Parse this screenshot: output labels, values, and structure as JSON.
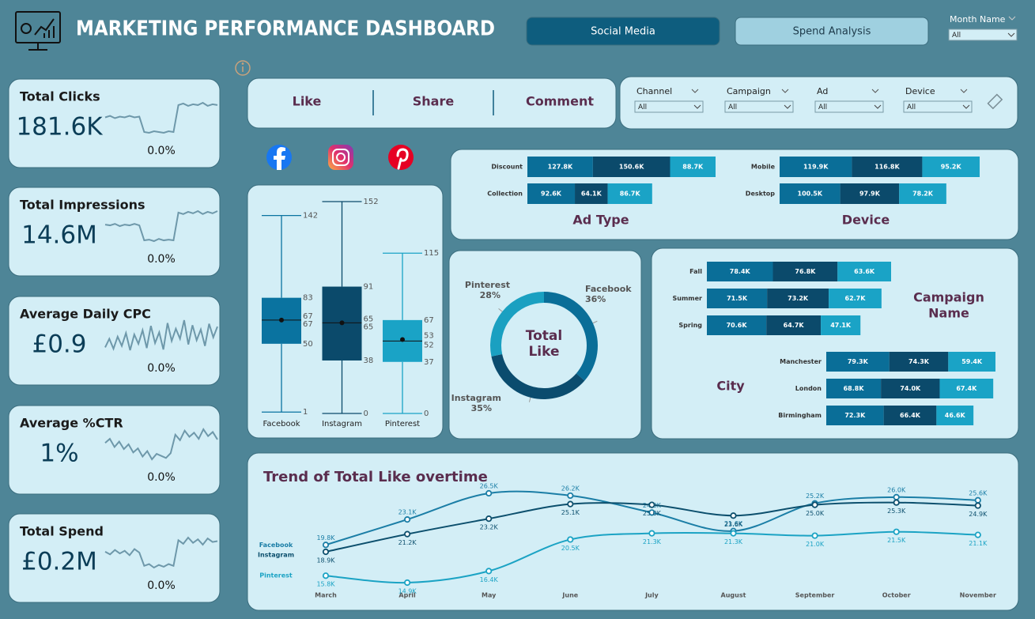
{
  "header": {
    "title": "MARKETING PERFORMANCE DASHBOARD",
    "buttons": [
      "Social Media",
      "Spend Analysis"
    ],
    "month_filter": {
      "label": "Month Name",
      "value": "All"
    }
  },
  "kpis": [
    {
      "label": "Total Clicks",
      "value": "181.6K",
      "change": "0.0%",
      "trend": [
        6.0,
        6.2,
        5.9,
        6.1,
        6.0,
        6.2,
        6.0,
        6.1,
        4.1,
        4.0,
        4.2,
        4.1,
        4.0,
        4.2,
        4.1,
        7.6,
        7.8,
        7.5,
        7.7,
        7.6,
        7.9,
        7.5,
        7.7,
        7.6
      ]
    },
    {
      "label": "Total Impressions",
      "value": "14.6M",
      "change": "0.0%",
      "trend": [
        6.1,
        6.0,
        6.2,
        5.9,
        6.1,
        6.0,
        6.2,
        6.0,
        4.0,
        4.1,
        3.9,
        4.2,
        4.0,
        4.1,
        4.0,
        7.7,
        7.5,
        7.8,
        7.6,
        7.9,
        7.5,
        7.8,
        7.6,
        7.9
      ]
    },
    {
      "label": "Average Daily CPC",
      "value": "£0.9",
      "change": "0.0%",
      "trend": [
        5.0,
        6.2,
        4.8,
        6.5,
        5.2,
        7.0,
        4.6,
        6.8,
        5.5,
        7.4,
        4.9,
        8.0,
        5.6,
        7.1,
        4.7,
        8.4,
        5.9,
        7.6,
        6.2,
        8.8,
        5.4,
        8.1,
        6.0,
        7.5,
        5.2,
        8.3,
        6.4,
        7.9
      ]
    },
    {
      "label": "Average %CTR",
      "value": "1%",
      "change": "0.0%",
      "trend": [
        6.0,
        6.6,
        5.4,
        6.2,
        5.1,
        5.8,
        4.6,
        5.2,
        4.0,
        4.8,
        3.6,
        4.4,
        4.1,
        3.8,
        4.5,
        7.2,
        6.4,
        7.8,
        6.9,
        7.5,
        6.6,
        8.0,
        7.0,
        7.6,
        6.5
      ]
    },
    {
      "label": "Total Spend",
      "value": "£0.2M",
      "change": "0.0%",
      "trend": [
        6.0,
        5.7,
        6.2,
        5.8,
        6.1,
        5.6,
        6.3,
        5.9,
        4.4,
        4.6,
        4.2,
        4.5,
        4.3,
        4.6,
        4.4,
        7.3,
        6.9,
        7.6,
        7.0,
        7.4,
        6.8,
        7.5,
        7.1,
        7.2
      ]
    }
  ],
  "reactions": [
    "Like",
    "Share",
    "Comment"
  ],
  "filters": [
    {
      "label": "Channel",
      "value": "All"
    },
    {
      "label": "Campaign",
      "value": "All"
    },
    {
      "label": "Ad",
      "value": "All"
    },
    {
      "label": "Device",
      "value": "All"
    }
  ],
  "chart_data": [
    {
      "type": "box",
      "categories": [
        "Facebook",
        "Instagram",
        "Pinterest"
      ],
      "colors": [
        "#0a73a0",
        "#0b4a6b",
        "#1aa3c6"
      ],
      "boxes": [
        {
          "min": 1,
          "q1": 50,
          "median": 67,
          "mean": 67,
          "q3": 83,
          "max": 142
        },
        {
          "min": 0,
          "q1": 38,
          "median": 65,
          "mean": 65,
          "q3": 91,
          "max": 152
        },
        {
          "min": 0,
          "q1": 37,
          "median": 52,
          "mean": 53,
          "q3": 67,
          "max": 115
        }
      ]
    },
    {
      "type": "stacked_bar",
      "title": "Ad Type",
      "categories": [
        "Discount",
        "Collection"
      ],
      "series": [
        {
          "color": "#0a6e98",
          "values": [
            127800,
            92600
          ],
          "value_labels": [
            "127.8K",
            "92.6K"
          ]
        },
        {
          "color": "#0b4a6b",
          "values": [
            150600,
            64100
          ],
          "value_labels": [
            "150.6K",
            "64.1K"
          ]
        },
        {
          "color": "#1aa3c6",
          "values": [
            88700,
            86700
          ],
          "value_labels": [
            "88.7K",
            "86.7K"
          ]
        }
      ]
    },
    {
      "type": "stacked_bar",
      "title": "Device",
      "categories": [
        "Mobile",
        "Desktop"
      ],
      "series": [
        {
          "color": "#0a6e98",
          "values": [
            119900,
            100500
          ],
          "value_labels": [
            "119.9K",
            "100.5K"
          ]
        },
        {
          "color": "#0b4a6b",
          "values": [
            116800,
            97900
          ],
          "value_labels": [
            "116.8K",
            "97.9K"
          ]
        },
        {
          "color": "#1aa3c6",
          "values": [
            95200,
            78200
          ],
          "value_labels": [
            "95.2K",
            "78.2K"
          ]
        }
      ]
    },
    {
      "type": "donut",
      "center_label": [
        "Total",
        "Like"
      ],
      "categories": [
        "Facebook",
        "Instagram",
        "Pinterest"
      ],
      "values": [
        36,
        35,
        28
      ],
      "value_labels": [
        "36%",
        "35%",
        "28%"
      ],
      "colors": [
        "#0a6e98",
        "#0b4c6e",
        "#1aa0c1"
      ]
    },
    {
      "type": "stacked_bar",
      "title": [
        "Campaign",
        "Name"
      ],
      "categories": [
        "Fall",
        "Summer",
        "Spring"
      ],
      "series": [
        {
          "color": "#0a6e98",
          "values": [
            78400,
            71500,
            70600
          ],
          "value_labels": [
            "78.4K",
            "71.5K",
            "70.6K"
          ]
        },
        {
          "color": "#0b4a6b",
          "values": [
            76800,
            73200,
            64700
          ],
          "value_labels": [
            "76.8K",
            "73.2K",
            "64.7K"
          ]
        },
        {
          "color": "#1aa3c6",
          "values": [
            63600,
            62700,
            47100
          ],
          "value_labels": [
            "63.6K",
            "62.7K",
            "47.1K"
          ]
        }
      ]
    },
    {
      "type": "stacked_bar",
      "title": "City",
      "categories": [
        "Manchester",
        "London",
        "Birmingham"
      ],
      "series": [
        {
          "color": "#0a6e98",
          "values": [
            79300,
            68800,
            72300
          ],
          "value_labels": [
            "79.3K",
            "68.8K",
            "72.3K"
          ]
        },
        {
          "color": "#0b4a6b",
          "values": [
            74300,
            74000,
            66400
          ],
          "value_labels": [
            "74.3K",
            "74.0K",
            "66.4K"
          ]
        },
        {
          "color": "#1aa3c6",
          "values": [
            59400,
            67400,
            46600
          ],
          "value_labels": [
            "59.4K",
            "67.4K",
            "46.6K"
          ]
        }
      ]
    },
    {
      "type": "line",
      "title": "Trend of Total Like overtime",
      "categories": [
        "March",
        "April",
        "May",
        "June",
        "July",
        "August",
        "September",
        "October",
        "November"
      ],
      "series": [
        {
          "name": "Facebook",
          "color": "#1b7ea6",
          "values": [
            19800,
            23100,
            26500,
            26200,
            24000,
            21600,
            25200,
            26000,
            25600
          ],
          "value_labels": [
            "19.8K",
            "23.1K",
            "26.5K",
            "26.2K",
            "24.0K",
            "21.6K",
            "25.2K",
            "26.0K",
            "25.6K"
          ]
        },
        {
          "name": "Instagram",
          "color": "#0c4f6d",
          "values": [
            18900,
            21200,
            23200,
            25100,
            25000,
            23600,
            25000,
            25300,
            24900
          ],
          "value_labels": [
            "18.9K",
            "21.2K",
            "23.2K",
            "25.1K",
            "25.0K",
            "23.6K",
            "25.0K",
            "25.3K",
            "24.9K"
          ]
        },
        {
          "name": "Pinterest",
          "color": "#1ba3c4",
          "values": [
            15800,
            14900,
            16400,
            20500,
            21300,
            21300,
            21000,
            21500,
            21100
          ],
          "value_labels": [
            "15.8K",
            "14.9K",
            "16.4K",
            "20.5K",
            "21.3K",
            "21.3K",
            "21.0K",
            "21.5K",
            "21.1K"
          ]
        }
      ]
    }
  ]
}
